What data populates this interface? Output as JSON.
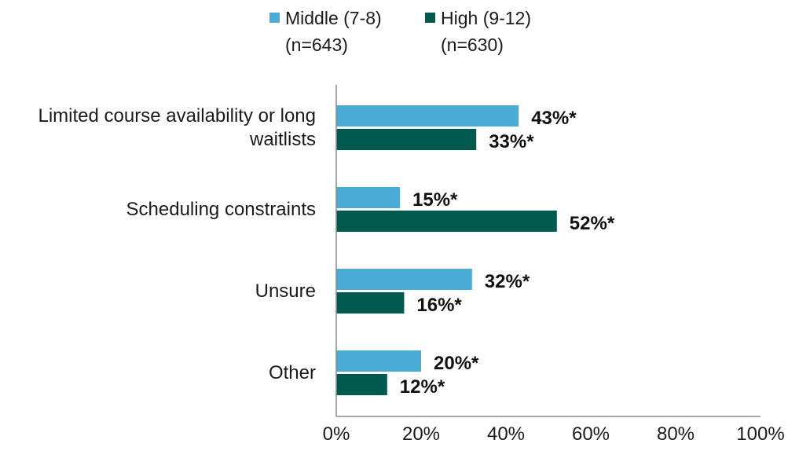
{
  "chart_data": {
    "type": "bar",
    "orientation": "horizontal",
    "categories": [
      [
        "Limited course availability or long",
        "waitlists"
      ],
      [
        "Scheduling constraints"
      ],
      [
        "Unsure"
      ],
      [
        "Other"
      ]
    ],
    "series": [
      {
        "name": "Middle (7-8)",
        "sample": "(n=643)",
        "color": "#4badd6",
        "values": [
          43,
          15,
          32,
          20
        ],
        "labels": [
          "43%*",
          "15%*",
          "32%*",
          "20%*"
        ]
      },
      {
        "name": "High (9-12)",
        "sample": "(n=630)",
        "color": "#005a50",
        "values": [
          33,
          52,
          16,
          12
        ],
        "labels": [
          "33%*",
          "52%*",
          "16%*",
          "12%*"
        ]
      }
    ],
    "xlim": [
      0,
      100
    ],
    "x_ticks": [
      "0%",
      "20%",
      "40%",
      "60%",
      "80%",
      "100%"
    ],
    "legend_position": "top",
    "grid": false
  }
}
